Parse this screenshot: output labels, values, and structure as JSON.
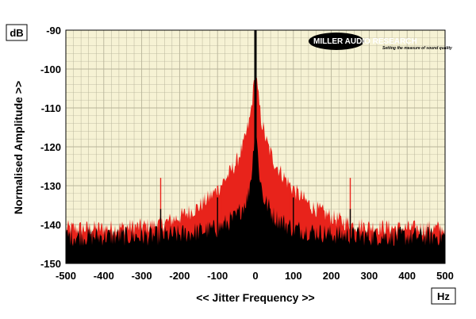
{
  "chart_data": {
    "type": "area",
    "xlabel": "<< Jitter Frequency >>",
    "ylabel": "Normalised Amplitude >>",
    "x_unit": "Hz",
    "y_unit": "dB",
    "xlim": [
      -500,
      500
    ],
    "ylim": [
      -150,
      -90
    ],
    "xticks": [
      -500,
      -400,
      -300,
      -200,
      -100,
      0,
      100,
      200,
      300,
      400,
      500
    ],
    "yticks": [
      -90,
      -100,
      -110,
      -120,
      -130,
      -140,
      -150
    ],
    "grid": true,
    "colors": {
      "plot_background": "#f6f2d4",
      "grid_line": "#b8b49a",
      "red_series": "#e8231b",
      "black_series": "#000000"
    },
    "series": [
      {
        "color": "#e8231b",
        "description_points": [
          {
            "x": -500,
            "y": -141
          },
          {
            "x": -400,
            "y": -141
          },
          {
            "x": -300,
            "y": -140.5
          },
          {
            "x": -250,
            "y": -140
          },
          {
            "x": -200,
            "y": -138
          },
          {
            "x": -150,
            "y": -135.5
          },
          {
            "x": -100,
            "y": -131
          },
          {
            "x": -70,
            "y": -127
          },
          {
            "x": -50,
            "y": -124
          },
          {
            "x": -30,
            "y": -119
          },
          {
            "x": -15,
            "y": -113
          },
          {
            "x": -5,
            "y": -105
          },
          {
            "x": 0,
            "y": -98
          },
          {
            "x": 5,
            "y": -105
          },
          {
            "x": 15,
            "y": -113
          },
          {
            "x": 30,
            "y": -119
          },
          {
            "x": 50,
            "y": -124
          },
          {
            "x": 70,
            "y": -127
          },
          {
            "x": 100,
            "y": -131
          },
          {
            "x": 150,
            "y": -135.5
          },
          {
            "x": 200,
            "y": -138
          },
          {
            "x": 250,
            "y": -140
          },
          {
            "x": 300,
            "y": -140.5
          },
          {
            "x": 400,
            "y": -141
          },
          {
            "x": 500,
            "y": -141
          }
        ],
        "spikes": [
          {
            "x": -250,
            "y": -128
          },
          {
            "x": -100,
            "y": -130
          },
          {
            "x": -90,
            "y": -131
          },
          {
            "x": 100,
            "y": -130
          },
          {
            "x": 90,
            "y": -131
          },
          {
            "x": 250,
            "y": -128
          }
        ]
      },
      {
        "color": "#000000",
        "description_points": [
          {
            "x": -500,
            "y": -143
          },
          {
            "x": -300,
            "y": -143
          },
          {
            "x": -200,
            "y": -142.5
          },
          {
            "x": -100,
            "y": -141
          },
          {
            "x": -50,
            "y": -138
          },
          {
            "x": -20,
            "y": -133
          },
          {
            "x": -8,
            "y": -125
          },
          {
            "x": -2,
            "y": -115
          },
          {
            "x": 0,
            "y": -90
          },
          {
            "x": 2,
            "y": -115
          },
          {
            "x": 8,
            "y": -125
          },
          {
            "x": 20,
            "y": -133
          },
          {
            "x": 50,
            "y": -138
          },
          {
            "x": 100,
            "y": -141
          },
          {
            "x": 200,
            "y": -142.5
          },
          {
            "x": 300,
            "y": -143
          },
          {
            "x": 500,
            "y": -143
          }
        ],
        "spikes": [
          {
            "x": -250,
            "y": -136
          },
          {
            "x": -100,
            "y": -133
          },
          {
            "x": 100,
            "y": -133
          },
          {
            "x": 250,
            "y": -136
          }
        ]
      }
    ]
  },
  "logo": {
    "name": "MILLER AUDIO RESEARCH",
    "tagline": "Setting the measure of sound quality"
  }
}
